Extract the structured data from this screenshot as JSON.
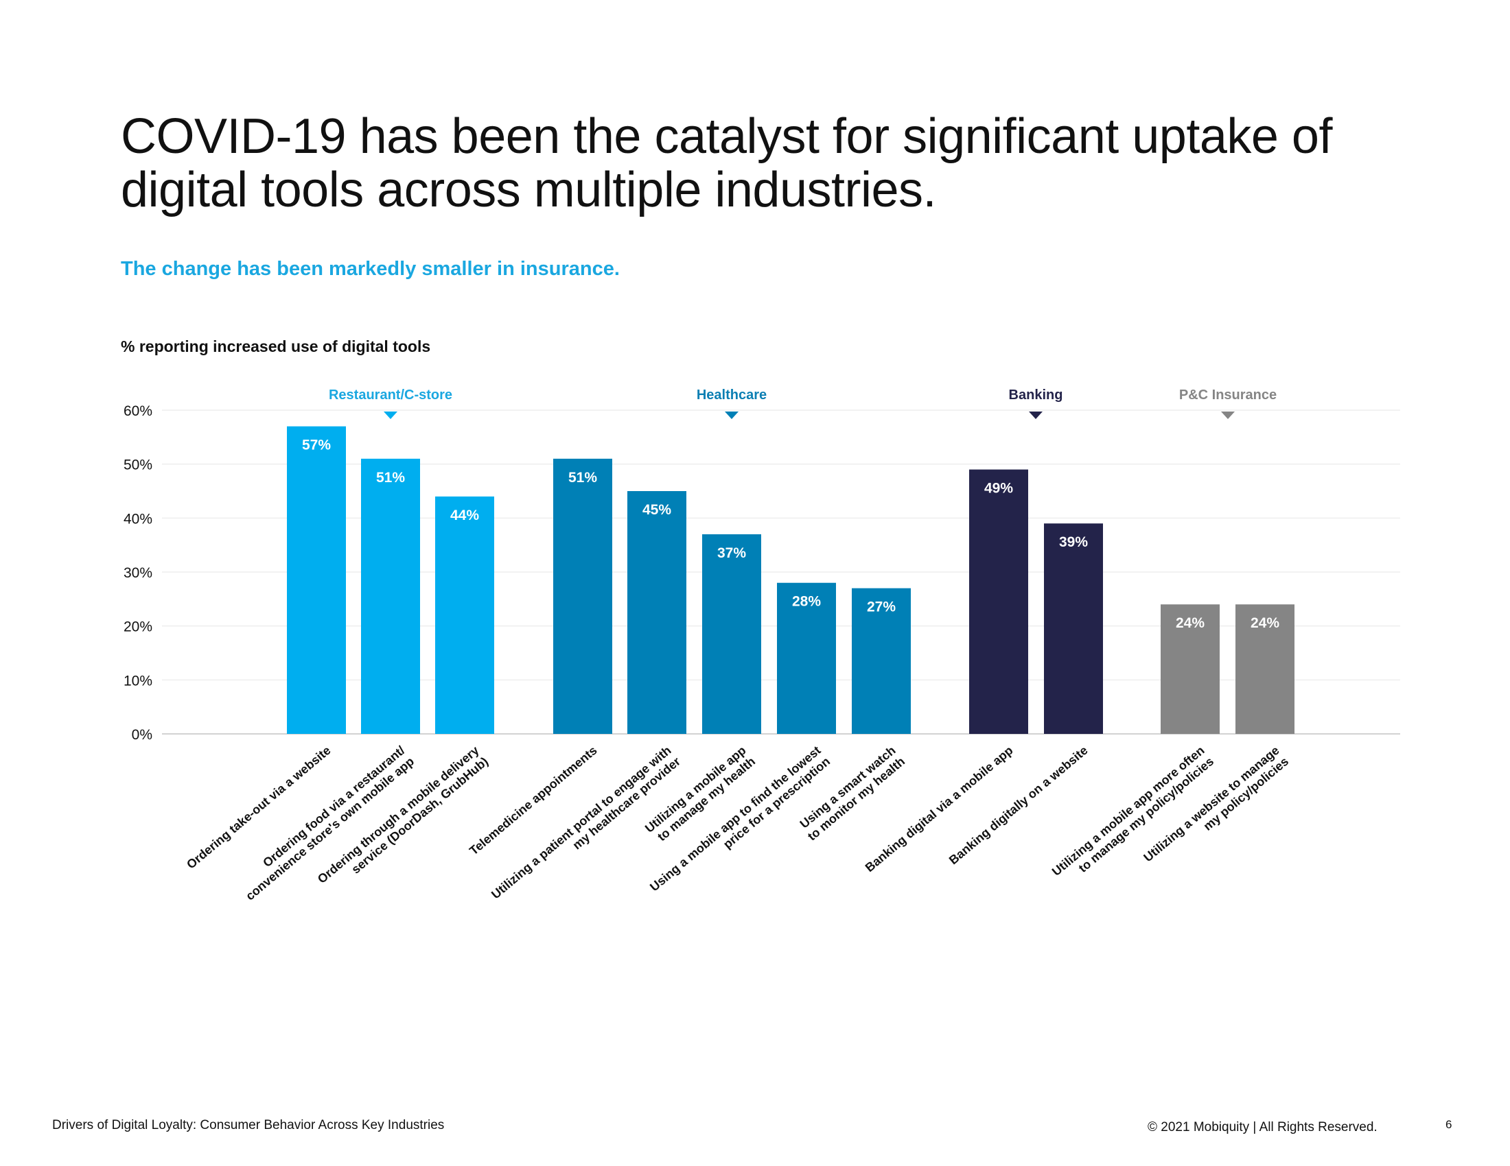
{
  "title_line1": "COVID-19 has been the catalyst for significant uptake of",
  "title_line2": "digital tools across multiple industries.",
  "subtitle": "The change has been markedly smaller in insurance.",
  "chart_label": "% reporting increased use of digital tools",
  "footer": {
    "left": "Drivers of Digital Loyalty: Consumer Behavior Across Key Industries",
    "right": "© 2021 Mobiquity  |  All Rights Reserved.",
    "page": "6"
  },
  "chart_data": {
    "type": "bar",
    "ylim": [
      0,
      60
    ],
    "y_ticks": [
      0,
      10,
      20,
      30,
      40,
      50,
      60
    ],
    "y_tick_labels": [
      "0%",
      "10%",
      "20%",
      "30%",
      "40%",
      "50%",
      "60%"
    ],
    "grid": true,
    "groups": [
      {
        "name": "Restaurant/C-store",
        "color": "#00aeef",
        "label_color": "#1aa7e0",
        "bars": [
          0,
          1,
          2
        ]
      },
      {
        "name": "Healthcare",
        "color": "#0080b6",
        "label_color": "#0c7fb3",
        "bars": [
          3,
          4,
          5,
          6,
          7
        ]
      },
      {
        "name": "Banking",
        "color": "#23234a",
        "label_color": "#23234a",
        "bars": [
          8,
          9
        ]
      },
      {
        "name": "P&C Insurance",
        "color": "#858585",
        "label_color": "#858585",
        "bars": [
          10,
          11
        ]
      }
    ],
    "categories": [
      [
        "Ordering take-out via a website"
      ],
      [
        "Ordering food via a restaurant/",
        "convenience store's own mobile app"
      ],
      [
        "Ordering through a mobile delivery",
        "service (DoorDash, GrubHub)"
      ],
      [
        "Telemedicine appointments"
      ],
      [
        "Utilizing a patient portal to engage with",
        "my healthcare provider"
      ],
      [
        "Utilizing a mobile app",
        "to manage my health"
      ],
      [
        "Using a mobile app to find the lowest",
        "price for a prescription"
      ],
      [
        "Using a smart watch",
        "to monitor my health"
      ],
      [
        "Banking digital via a mobile app"
      ],
      [
        "Banking digitally on a website"
      ],
      [
        "Utilizing a mobile app more often",
        "to manage my policy/policies"
      ],
      [
        "Utilizing a website to manage",
        "my policy/policies"
      ]
    ],
    "values": [
      57,
      51,
      44,
      51,
      45,
      37,
      28,
      27,
      49,
      39,
      24,
      24
    ],
    "value_labels": [
      "57%",
      "51%",
      "44%",
      "51%",
      "45%",
      "37%",
      "28%",
      "27%",
      "49%",
      "39%",
      "24%",
      "24%"
    ]
  }
}
